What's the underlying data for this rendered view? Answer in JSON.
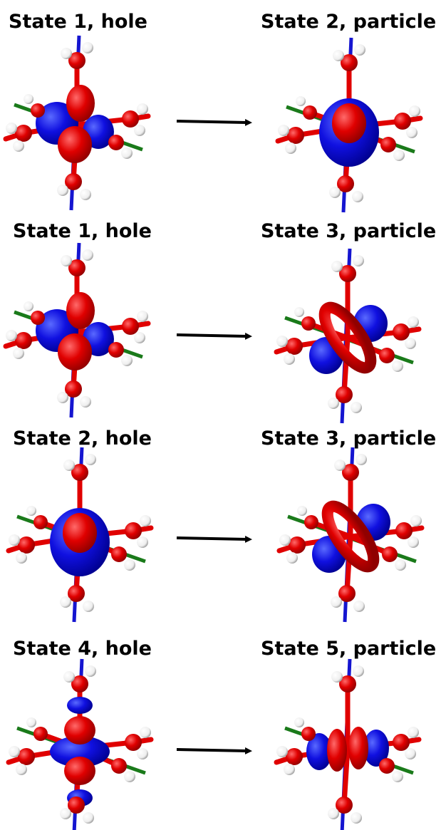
{
  "panels": [
    {
      "hole": "State 1, hole",
      "particle": "State 2, particle"
    },
    {
      "hole": "State 1, hole",
      "particle": "State 3, particle"
    },
    {
      "hole": "State 2, hole",
      "particle": "State 3, particle"
    },
    {
      "hole": "State 4, hole",
      "particle": "State 5, particle"
    }
  ]
}
